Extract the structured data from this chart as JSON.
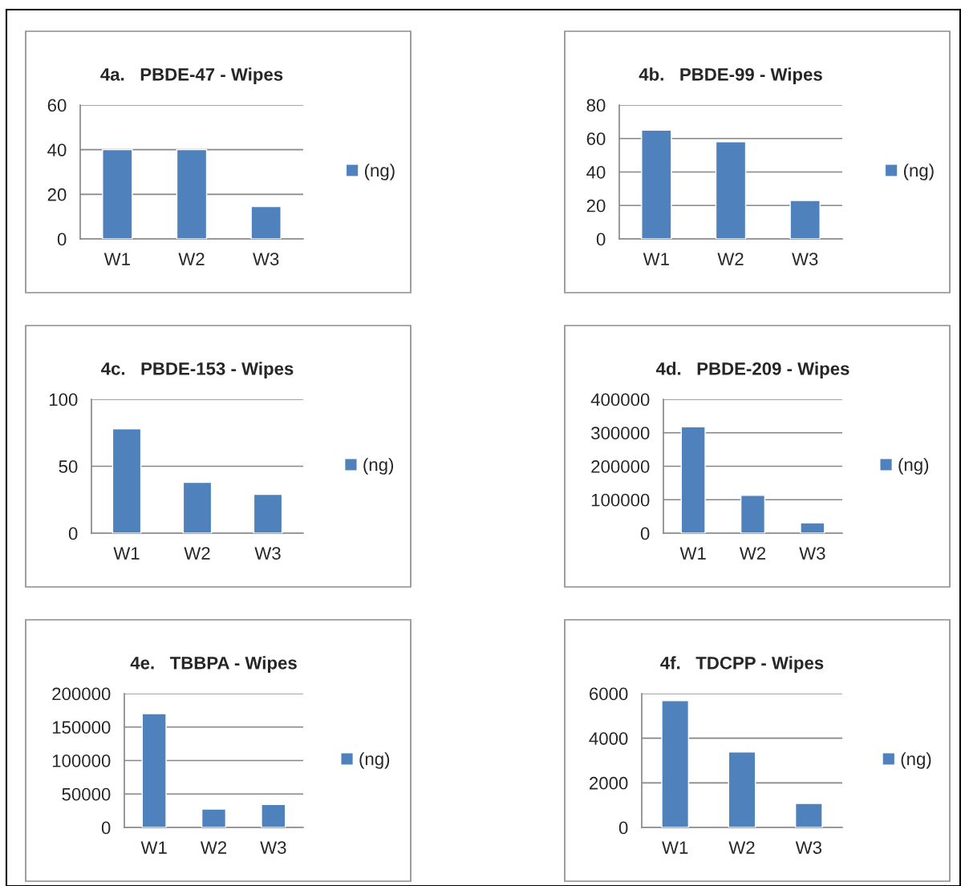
{
  "chart_data": [
    {
      "type": "bar",
      "title": "4a.   PBDE-47 - Wipes",
      "categories": [
        "W1",
        "W2",
        "W3"
      ],
      "series": [
        {
          "name": "(ng)",
          "color": "#4f81bd",
          "values": [
            40,
            40,
            14.5
          ]
        }
      ],
      "ylim": [
        0,
        60
      ],
      "yticks": [
        0,
        20,
        40,
        60
      ],
      "grid": "y",
      "legend": "right"
    },
    {
      "type": "bar",
      "title": "4b.   PBDE-99 - Wipes",
      "categories": [
        "W1",
        "W2",
        "W3"
      ],
      "series": [
        {
          "name": "(ng)",
          "color": "#4f81bd",
          "values": [
            65,
            58,
            23
          ]
        }
      ],
      "ylim": [
        0,
        80
      ],
      "yticks": [
        0,
        20,
        40,
        60,
        80
      ],
      "grid": "y",
      "legend": "right"
    },
    {
      "type": "bar",
      "title": "4c.   PBDE-153 - Wipes",
      "categories": [
        "W1",
        "W2",
        "W3"
      ],
      "series": [
        {
          "name": "(ng)",
          "color": "#4f81bd",
          "values": [
            78,
            38,
            29
          ]
        }
      ],
      "ylim": [
        0,
        100
      ],
      "yticks": [
        0,
        50,
        100
      ],
      "grid": "y",
      "legend": "right"
    },
    {
      "type": "bar",
      "title": "4d.   PBDE-209 - Wipes",
      "categories": [
        "W1",
        "W2",
        "W3"
      ],
      "series": [
        {
          "name": "(ng)",
          "color": "#4f81bd",
          "values": [
            318000,
            113000,
            31000
          ]
        }
      ],
      "ylim": [
        0,
        400000
      ],
      "yticks": [
        0,
        100000,
        200000,
        300000,
        400000
      ],
      "grid": "y",
      "legend": "right"
    },
    {
      "type": "bar",
      "title": "4e.   TBBPA - Wipes",
      "categories": [
        "W1",
        "W2",
        "W3"
      ],
      "series": [
        {
          "name": "(ng)",
          "color": "#4f81bd",
          "values": [
            170000,
            27500,
            34500
          ]
        }
      ],
      "ylim": [
        0,
        200000
      ],
      "yticks": [
        0,
        50000,
        100000,
        150000,
        200000
      ],
      "grid": "y",
      "legend": "right"
    },
    {
      "type": "bar",
      "title": "4f.   TDCPP - Wipes",
      "categories": [
        "W1",
        "W2",
        "W3"
      ],
      "series": [
        {
          "name": "(ng)",
          "color": "#4f81bd",
          "values": [
            5680,
            3380,
            1080
          ]
        }
      ],
      "ylim": [
        0,
        6000
      ],
      "yticks": [
        0,
        2000,
        4000,
        6000
      ],
      "grid": "y",
      "legend": "right"
    }
  ]
}
